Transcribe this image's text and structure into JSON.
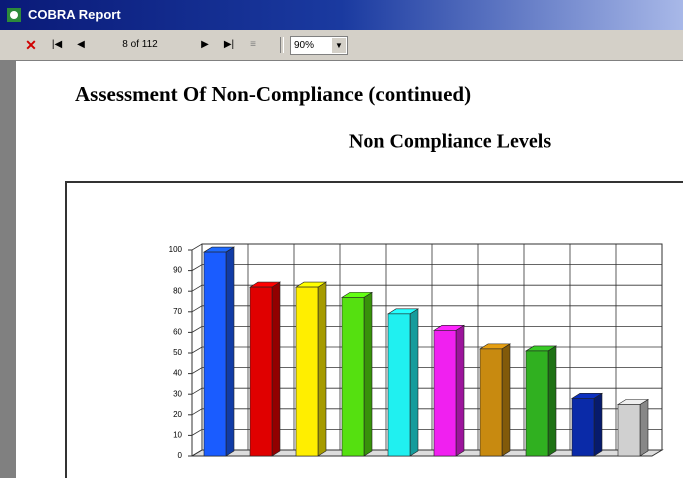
{
  "window": {
    "title": "COBRA Report",
    "page_indicator": "8 of 112",
    "zoom": "90%"
  },
  "report": {
    "title": "Assessment Of Non-Compliance (continued)"
  },
  "chart_data": {
    "type": "bar3d",
    "title": "Non Compliance Levels",
    "values": [
      99,
      82,
      82,
      77,
      69,
      61,
      52,
      51,
      28,
      25
    ],
    "colors": [
      "#1a5cff",
      "#e00000",
      "#ffee00",
      "#55e010",
      "#20f0f0",
      "#f020f0",
      "#c88a10",
      "#30b020",
      "#0a2aa8",
      "#d0d0d0"
    ],
    "ylim": [
      0,
      100
    ],
    "yticks": [
      0,
      10,
      20,
      30,
      40,
      50,
      60,
      70,
      80,
      90,
      100
    ],
    "grid": true
  }
}
